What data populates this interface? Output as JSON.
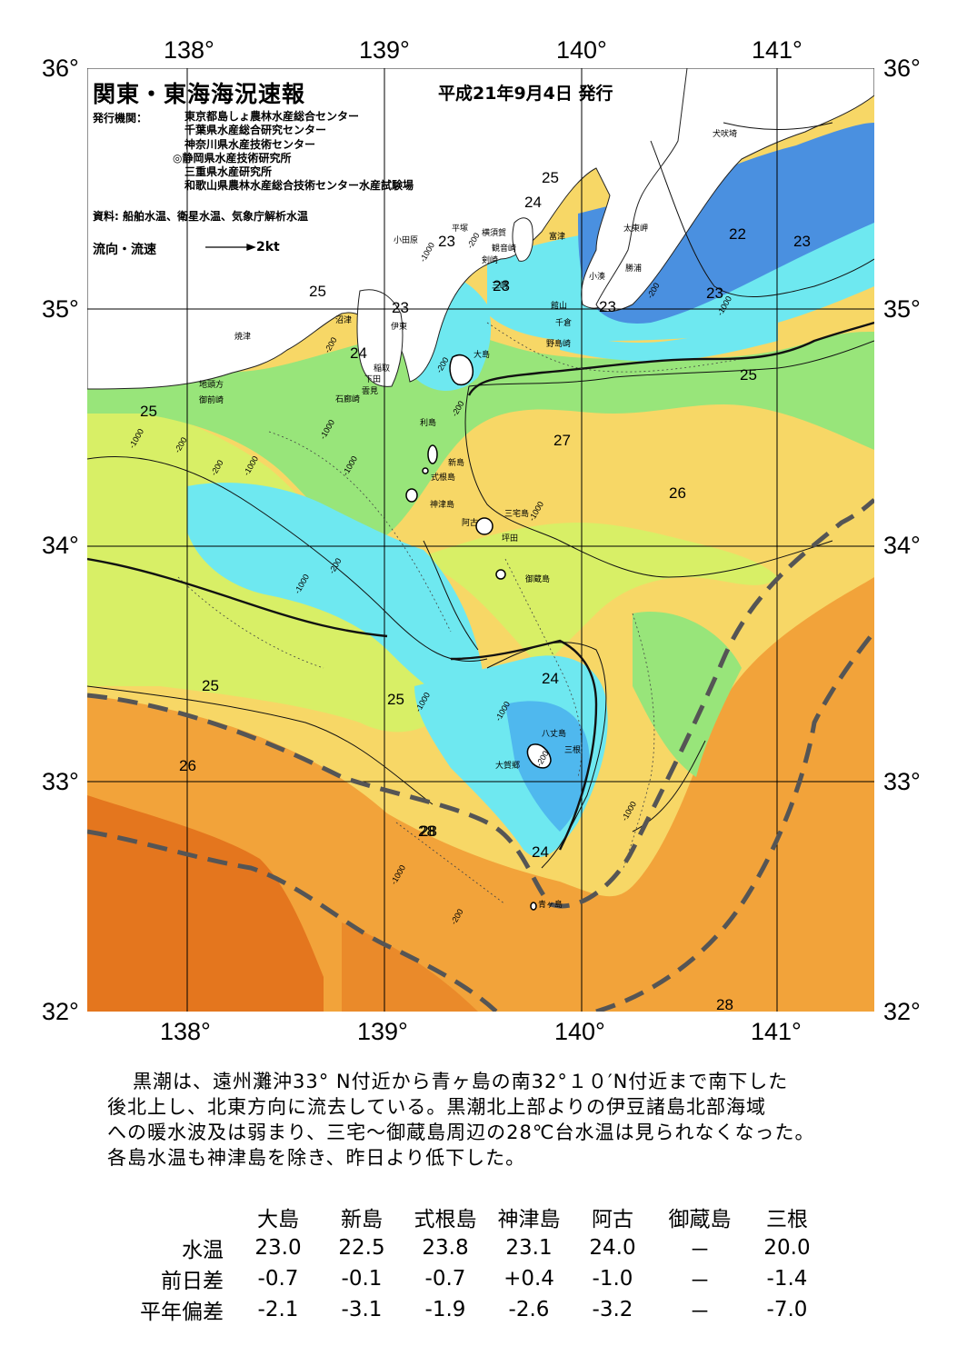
{
  "header": {
    "title": "関東・東海海況速報",
    "date": "平成21年9月4日 発行",
    "publisher_label": "発行機関：",
    "publishers": [
      "東京都島しょ農林水産総合センター",
      "千葉県水産総合研究センター",
      "神奈川県水産技術センター",
      "◎静岡県水産技術研究所",
      "三重県水産研究所",
      "和歌山県農林水産総合技術センター水産試験場"
    ],
    "source": "資料: 船舶水温、衛星水温、気象庁解析水温",
    "flow_label": "流向・流速",
    "flow_unit": "2kt"
  },
  "axes": {
    "lon_ticks": [
      "138°",
      "139°",
      "140°",
      "141°"
    ],
    "lat_ticks": [
      "36°",
      "35°",
      "34°",
      "33°",
      "32°"
    ]
  },
  "map_labels": {
    "places": [
      "犬吠埼",
      "太東岬",
      "勝浦",
      "小湊",
      "富津",
      "横須賀",
      "観音崎",
      "剣崎",
      "平塚",
      "小田原",
      "三崎",
      "館山",
      "千倉",
      "野島崎",
      "沼津",
      "伊東",
      "大島",
      "稲取",
      "下田",
      "雲見",
      "石廊崎",
      "焼津",
      "地頭方",
      "御前崎",
      "利島",
      "新島",
      "式根島",
      "神津島",
      "三宅島",
      "阿古",
      "坪田",
      "御蔵島",
      "八丈島",
      "三根",
      "大賀郷",
      "青ヶ島"
    ],
    "temperatures": [
      "25",
      "24",
      "23",
      "22",
      "23",
      "23",
      "23",
      "25",
      "24",
      "23",
      "25",
      "23",
      "25",
      "27",
      "26",
      "25",
      "24",
      "25",
      "26",
      "28",
      "28",
      "24",
      "28"
    ],
    "depths": [
      "-1000",
      "-200",
      "-1000",
      "-200",
      "-200",
      "-1000",
      "-200",
      "-200",
      "-1000",
      "-200",
      "-1000",
      "-1000",
      "-1000",
      "-200",
      "-1000",
      "-1000",
      "-1000",
      "-200",
      "-200",
      "-1000",
      "-200",
      "-1000"
    ]
  },
  "colors": {
    "cold_blue": "#4a90e0",
    "cyan": "#6ee8f0",
    "green": "#98e57a",
    "yellow_green": "#d8ef66",
    "yellow": "#f7d766",
    "orange": "#f2a33a",
    "dark_orange": "#e4761e",
    "kuroshio_line": "#555555"
  },
  "description": [
    "黒潮は、遠州灘沖33° N付近から青ヶ島の南32°１０′N付近まで南下した",
    "後北上し、北東方向に流去している。黒潮北上部よりの伊豆諸島北部海域",
    "への暖水波及は弱まり、三宅～御蔵島周辺の28℃台水温は見られなくなった。",
    "各島水温も神津島を除き、昨日より低下した。"
  ],
  "water_table": {
    "columns": [
      "大島",
      "新島",
      "式根島",
      "神津島",
      "阿古",
      "御蔵島",
      "三根"
    ],
    "rows": [
      {
        "label": "水温",
        "values": [
          "23.0",
          "22.5",
          "23.8",
          "23.1",
          "24.0",
          "－",
          "20.0"
        ]
      },
      {
        "label": "前日差",
        "values": [
          "-0.7",
          "-0.1",
          "-0.7",
          "+0.4",
          "-1.0",
          "－",
          "-1.4"
        ]
      },
      {
        "label": "平年偏差",
        "values": [
          "-2.1",
          "-3.1",
          "-1.9",
          "-2.6",
          "-3.2",
          "－",
          "-7.0"
        ]
      }
    ]
  }
}
